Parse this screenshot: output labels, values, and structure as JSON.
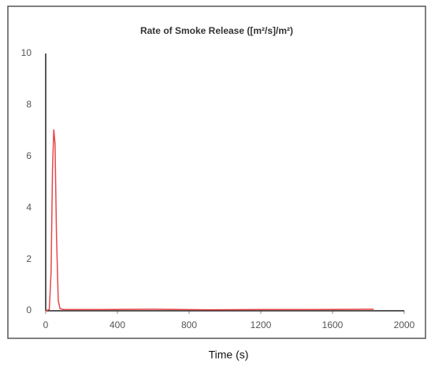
{
  "chart_data": {
    "type": "line",
    "title": "Rate of Smoke Release ([m²/s]/m²)",
    "x_label": "Time (s)",
    "x": [
      0,
      20,
      30,
      38,
      45,
      52,
      60,
      70,
      80,
      100,
      300,
      600,
      900,
      1200,
      1500,
      1830
    ],
    "series": [
      {
        "name": "Rate of Smoke Release",
        "color": "#e8474a",
        "values": [
          0,
          0.05,
          1.5,
          5.5,
          7.05,
          6.5,
          3,
          0.4,
          0.08,
          0.05,
          0.05,
          0.06,
          0.04,
          0.05,
          0.05,
          0.06
        ]
      }
    ],
    "xlim": [
      0,
      2000
    ],
    "xticks": [
      0,
      400,
      800,
      1200,
      1600,
      2000
    ],
    "ylim": [
      0,
      10
    ],
    "yticks": [
      0,
      2,
      4,
      6,
      8,
      10
    ],
    "grid": false
  }
}
